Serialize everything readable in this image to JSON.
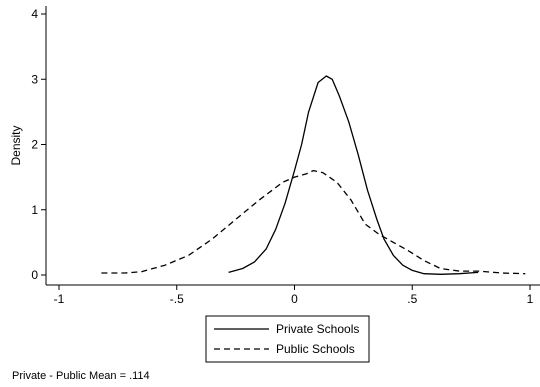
{
  "chart_data": {
    "type": "line",
    "ylabel": "Density",
    "xlabel": "",
    "xlim": [
      -1,
      1
    ],
    "ylim": [
      0,
      4
    ],
    "xticks": [
      -1,
      -0.5,
      0,
      0.5,
      1
    ],
    "xtick_labels": [
      "-1",
      "-.5",
      "0",
      ".5",
      "1"
    ],
    "yticks": [
      0,
      1,
      2,
      3,
      4
    ],
    "ytick_labels": [
      "0",
      "1",
      "2",
      "3",
      "4"
    ],
    "grid": false,
    "legend_position": "bottom",
    "note": "Private - Public Mean = .114",
    "series": [
      {
        "name": "Private Schools",
        "style": "solid",
        "color": "#000000",
        "points": [
          [
            -0.28,
            0.04
          ],
          [
            -0.22,
            0.1
          ],
          [
            -0.17,
            0.2
          ],
          [
            -0.12,
            0.4
          ],
          [
            -0.08,
            0.7
          ],
          [
            -0.04,
            1.1
          ],
          [
            0.0,
            1.6
          ],
          [
            0.03,
            2.0
          ],
          [
            0.06,
            2.5
          ],
          [
            0.1,
            2.95
          ],
          [
            0.135,
            3.05
          ],
          [
            0.16,
            3.0
          ],
          [
            0.19,
            2.75
          ],
          [
            0.23,
            2.35
          ],
          [
            0.27,
            1.85
          ],
          [
            0.31,
            1.3
          ],
          [
            0.35,
            0.85
          ],
          [
            0.38,
            0.55
          ],
          [
            0.42,
            0.3
          ],
          [
            0.46,
            0.15
          ],
          [
            0.5,
            0.07
          ],
          [
            0.55,
            0.02
          ],
          [
            0.62,
            0.01
          ],
          [
            0.7,
            0.02
          ],
          [
            0.78,
            0.04
          ]
        ]
      },
      {
        "name": "Public Schools",
        "style": "dashed",
        "color": "#000000",
        "points": [
          [
            -0.82,
            0.03
          ],
          [
            -0.72,
            0.03
          ],
          [
            -0.65,
            0.05
          ],
          [
            -0.55,
            0.15
          ],
          [
            -0.45,
            0.3
          ],
          [
            -0.35,
            0.55
          ],
          [
            -0.25,
            0.85
          ],
          [
            -0.15,
            1.15
          ],
          [
            -0.05,
            1.42
          ],
          [
            0.0,
            1.5
          ],
          [
            0.05,
            1.55
          ],
          [
            0.08,
            1.6
          ],
          [
            0.12,
            1.57
          ],
          [
            0.18,
            1.42
          ],
          [
            0.24,
            1.15
          ],
          [
            0.3,
            0.78
          ],
          [
            0.36,
            0.62
          ],
          [
            0.42,
            0.5
          ],
          [
            0.48,
            0.38
          ],
          [
            0.55,
            0.22
          ],
          [
            0.62,
            0.1
          ],
          [
            0.7,
            0.06
          ],
          [
            0.78,
            0.06
          ],
          [
            0.88,
            0.03
          ],
          [
            0.98,
            0.02
          ]
        ]
      }
    ]
  }
}
